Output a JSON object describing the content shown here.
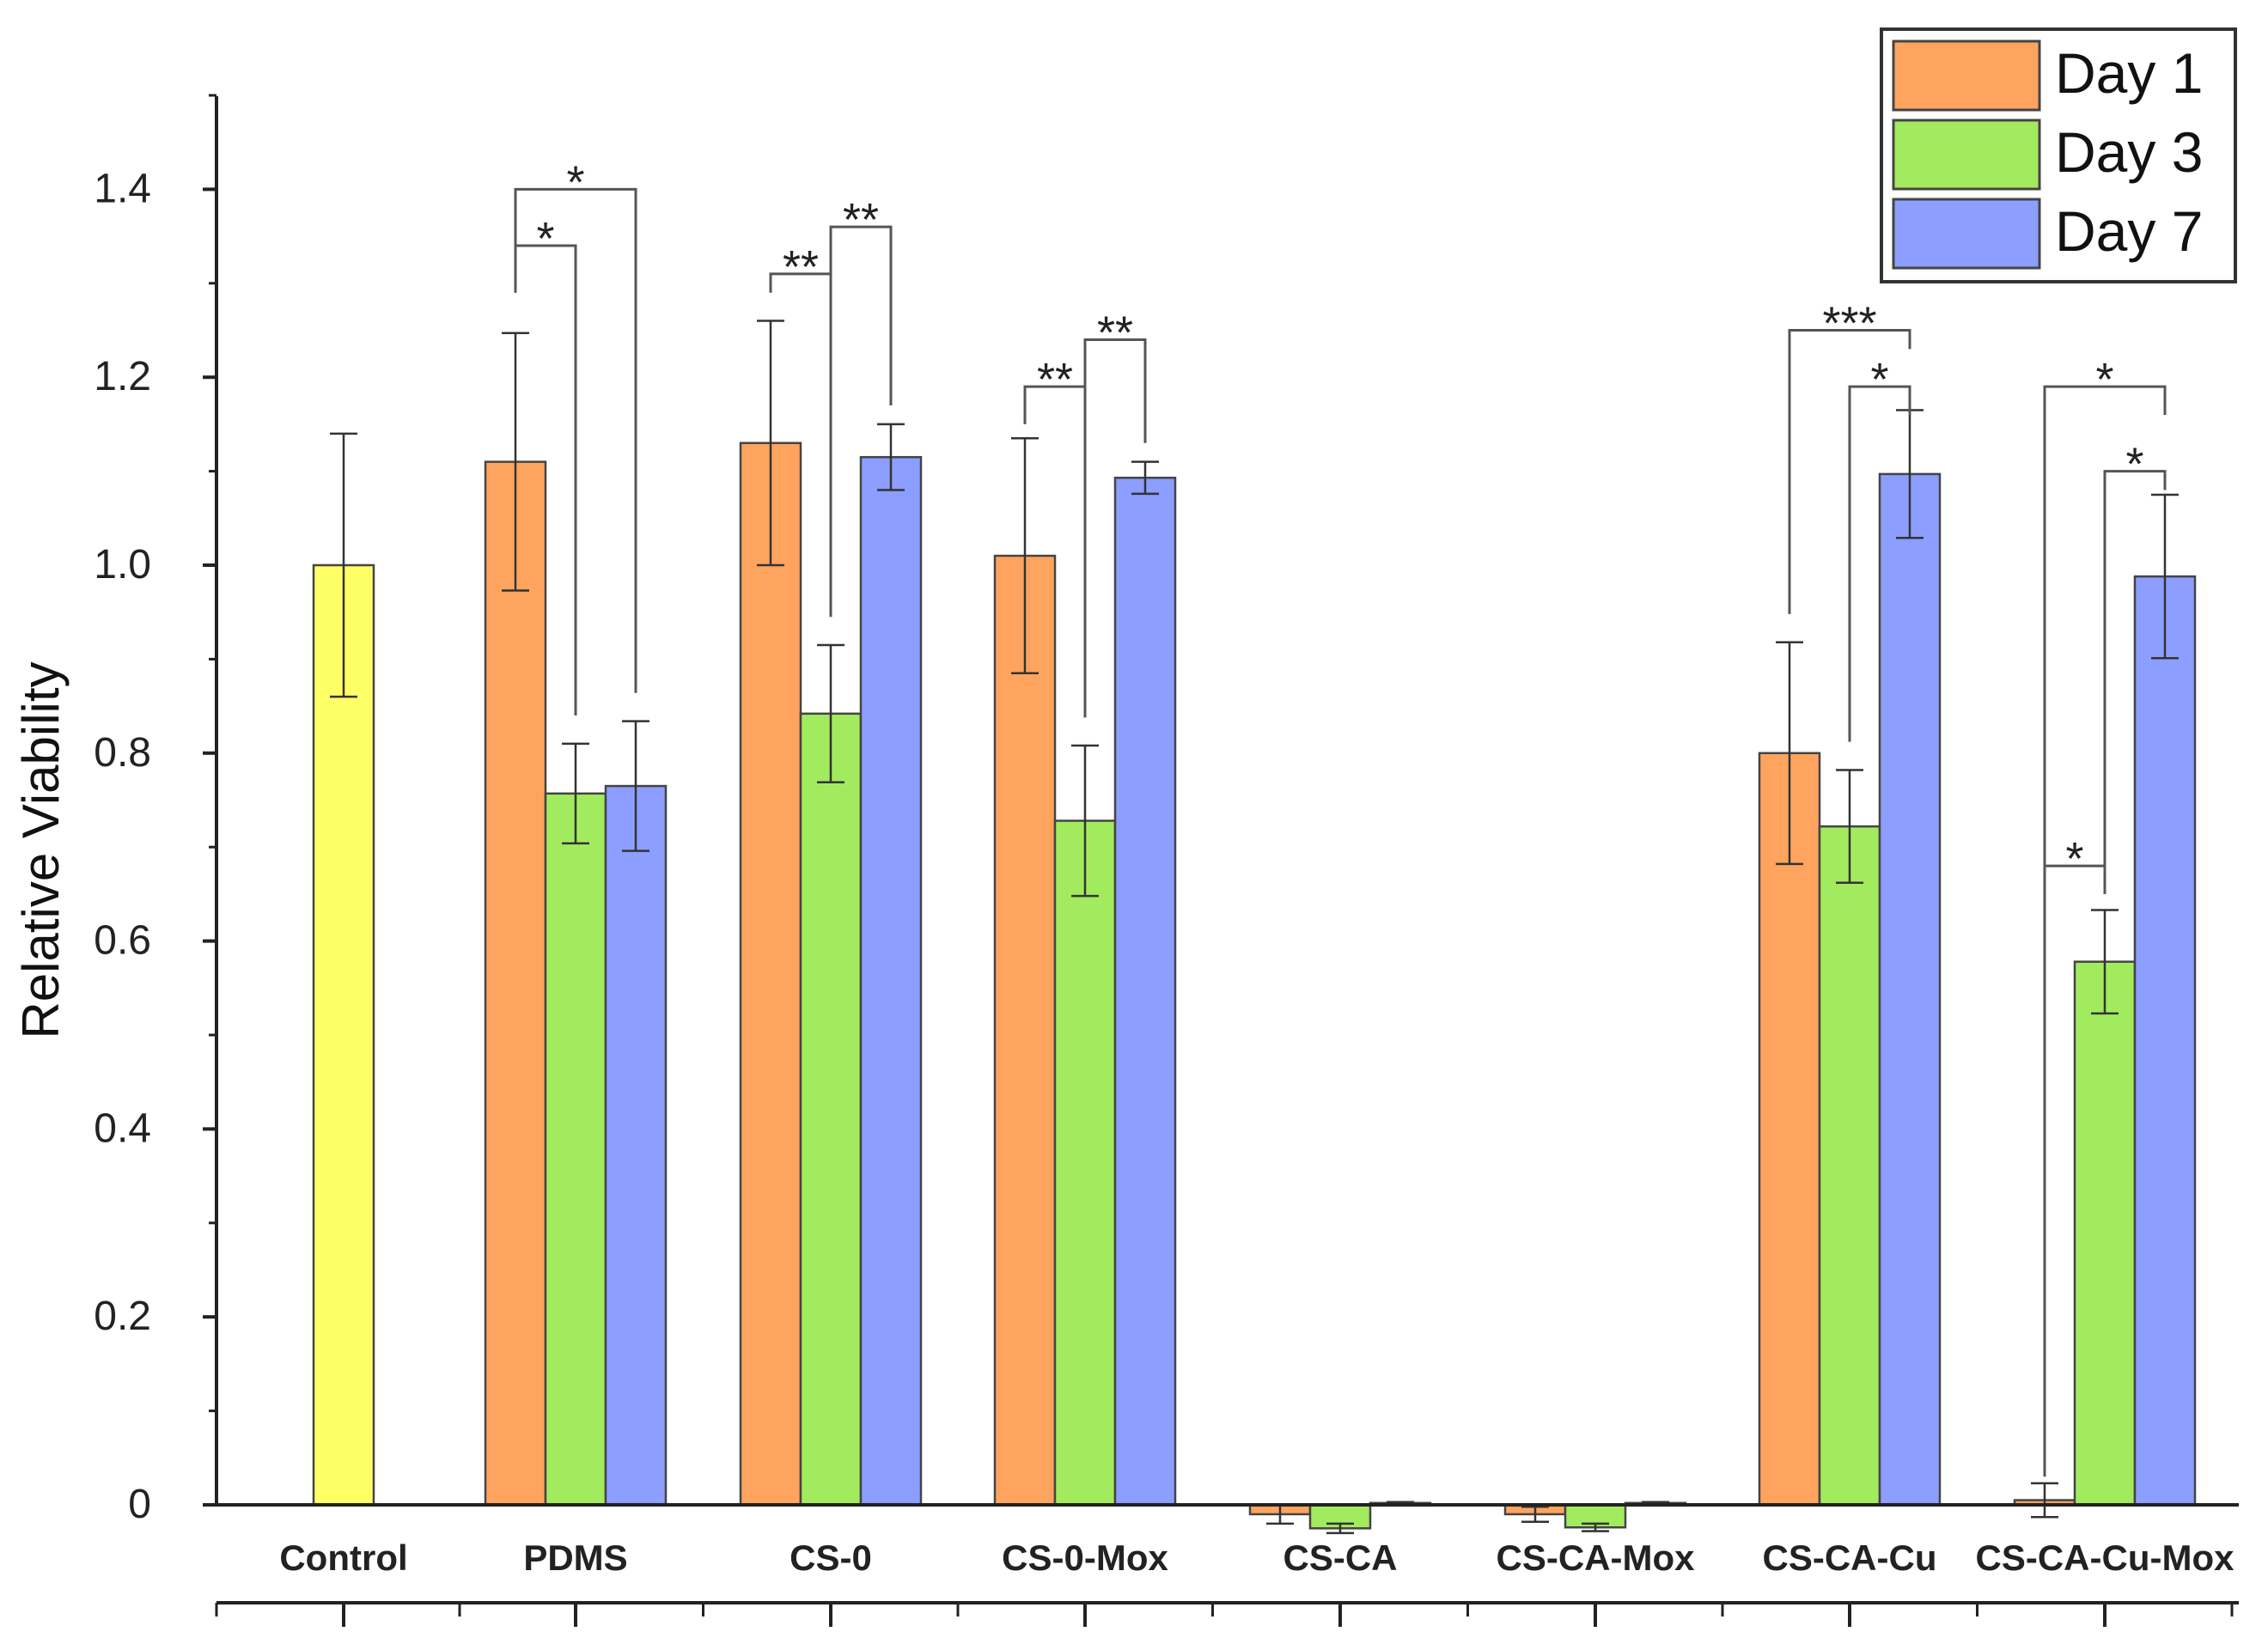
{
  "chart_data": {
    "type": "bar",
    "title": "",
    "xlabel": "",
    "ylabel": "Relative Viability",
    "ylim": [
      0,
      1.5
    ],
    "yticks": [
      {
        "value": 0,
        "label": "0"
      },
      {
        "value": 0.2,
        "label": "0.2"
      },
      {
        "value": 0.4,
        "label": "0.4"
      },
      {
        "value": 0.6,
        "label": "0.6"
      },
      {
        "value": 0.8,
        "label": "0.8"
      },
      {
        "value": 1.0,
        "label": "1.0"
      },
      {
        "value": 1.2,
        "label": "1.2"
      },
      {
        "value": 1.4,
        "label": "1.4"
      }
    ],
    "categories": [
      "Control",
      "PDMS",
      "CS-0",
      "CS-0-Mox",
      "CS-CA",
      "CS-CA-Mox",
      "CS-CA-Cu",
      "CS-CA-Cu-Mox"
    ],
    "control": {
      "name": "Control",
      "value": 1.0,
      "error": 0.14,
      "color": "#FFFF66"
    },
    "series": [
      {
        "name": "Day 1",
        "color": "#FFA45F",
        "values": [
          null,
          1.11,
          1.13,
          1.01,
          -0.01,
          -0.01,
          0.8,
          0.005
        ],
        "errors": [
          null,
          0.137,
          0.13,
          0.125,
          0.01,
          0.008,
          0.118,
          0.018
        ]
      },
      {
        "name": "Day 3",
        "color": "#A3EB5E",
        "values": [
          null,
          0.757,
          0.842,
          0.728,
          -0.025,
          -0.024,
          0.722,
          0.578
        ],
        "errors": [
          null,
          0.053,
          0.073,
          0.08,
          0.005,
          0.004,
          0.06,
          0.055
        ]
      },
      {
        "name": "Day 7",
        "color": "#8C9EFF",
        "values": [
          null,
          0.765,
          1.115,
          1.093,
          0.002,
          0.002,
          1.097,
          0.988
        ],
        "errors": [
          null,
          0.069,
          0.035,
          0.017,
          0.001,
          0.001,
          0.068,
          0.087
        ]
      }
    ],
    "significance": [
      {
        "category": "PDMS",
        "from": "Day 1",
        "to": "Day 3",
        "label": "*"
      },
      {
        "category": "PDMS",
        "from": "Day 1",
        "to": "Day 7",
        "label": "*"
      },
      {
        "category": "CS-0",
        "from": "Day 1",
        "to": "Day 3",
        "label": "**"
      },
      {
        "category": "CS-0",
        "from": "Day 3",
        "to": "Day 7",
        "label": "**"
      },
      {
        "category": "CS-0-Mox",
        "from": "Day 1",
        "to": "Day 3",
        "label": "**"
      },
      {
        "category": "CS-0-Mox",
        "from": "Day 3",
        "to": "Day 7",
        "label": "**"
      },
      {
        "category": "CS-CA-Cu",
        "from": "Day 1",
        "to": "Day 7",
        "label": "***"
      },
      {
        "category": "CS-CA-Cu",
        "from": "Day 3",
        "to": "Day 7",
        "label": "*"
      },
      {
        "category": "CS-CA-Cu-Mox",
        "from": "Day 1",
        "to": "Day 7",
        "label": "*"
      },
      {
        "category": "CS-CA-Cu-Mox",
        "from": "Day 3",
        "to": "Day 7",
        "label": "*"
      },
      {
        "category": "CS-CA-Cu-Mox",
        "from": "Day 1",
        "to": "Day 3",
        "label": "*"
      }
    ],
    "legend": {
      "position": "top-right",
      "entries": [
        {
          "label": "Day 1",
          "color": "#FFA45F"
        },
        {
          "label": "Day 3",
          "color": "#A3EB5E"
        },
        {
          "label": "Day 7",
          "color": "#8C9EFF"
        }
      ]
    }
  }
}
